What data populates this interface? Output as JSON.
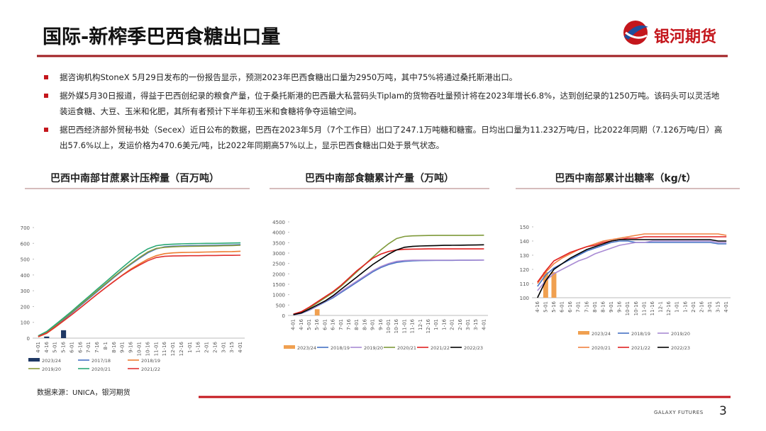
{
  "header": {
    "title": "国际-新榨季巴西食糖出口量",
    "logo_text": "银河期货"
  },
  "bullets": [
    "据咨询机构StoneX 5月29日发布的一份报告显示，预测2023年巴西食糖出口量为2950万吨，其中75%将通过桑托斯港出口。",
    "据外媒5月30日报道，得益于巴西创纪录的粮食产量，位于桑托斯港的巴西最大私营码头Tiplam的货物吞吐量预计将在2023年增长6.8%，达到创纪录的1250万吨。该码头可以灵活地装运食糖、大豆、玉米和化肥，其所有者预计下半年初玉米和食糖将争夺运输空间。",
    "据巴西经济部外贸秘书处（Secex）近日公布的数据，巴西在2023年5月（7个工作日）出口了247.1万吨糖和糖蜜。日均出口量为11.232万吨/日，比2022年同期（7.126万吨/日）高出57.6%以上，发运价格为470.6美元/吨，比2022年同期高57%以上，显示巴西食糖出口处于景气状态。"
  ],
  "footer": {
    "source": "数据来源：UNICA，银河期货",
    "brand": "GALAXY FUTURES",
    "page": "3"
  },
  "chart_data": [
    {
      "type": "line",
      "title": "巴西中南部甘蔗累计压榨量（百万吨）",
      "ylim": [
        0,
        700
      ],
      "yticks": [
        0,
        100,
        200,
        300,
        400,
        500,
        600,
        700
      ],
      "categories": [
        "4-01",
        "4-16",
        "5-01",
        "5-16",
        "6-01",
        "6-16",
        "7-01",
        "7-16",
        "8-1",
        "8-16",
        "9-01",
        "9-16",
        "10-01",
        "10-16",
        "11-01",
        "11-16",
        "12-01",
        "12-16",
        "1-01",
        "1-16",
        "2-01",
        "2-16",
        "3-01",
        "3-15",
        "4-01"
      ],
      "series": [
        {
          "name": "2023/24",
          "type": "bar",
          "color": "#1f3864",
          "values": [
            null,
            10,
            null,
            50,
            null,
            null,
            null,
            null,
            null,
            null,
            null,
            null,
            null,
            null,
            null,
            null,
            null,
            null,
            null,
            null,
            null,
            null,
            null,
            null,
            null
          ]
        },
        {
          "name": "2017/18",
          "color": "#4472c4",
          "values": [
            10,
            35,
            75,
            118,
            160,
            205,
            250,
            295,
            340,
            385,
            428,
            468,
            505,
            540,
            565,
            578,
            582,
            584,
            585,
            586,
            587,
            588,
            589,
            590,
            592
          ]
        },
        {
          "name": "2018/19",
          "color": "#ed7d31",
          "values": [
            8,
            30,
            68,
            108,
            150,
            192,
            235,
            278,
            320,
            360,
            400,
            438,
            470,
            500,
            522,
            535,
            540,
            542,
            543,
            544,
            545,
            546,
            547,
            548,
            550
          ]
        },
        {
          "name": "2019/20",
          "color": "#8a9a3b",
          "values": [
            12,
            38,
            80,
            122,
            165,
            210,
            255,
            300,
            345,
            390,
            432,
            472,
            510,
            545,
            568,
            575,
            578,
            580,
            581,
            582,
            583,
            584,
            585,
            586,
            588
          ]
        },
        {
          "name": "2020/21",
          "color": "#2aa876",
          "values": [
            15,
            42,
            85,
            128,
            172,
            218,
            264,
            310,
            356,
            402,
            448,
            492,
            532,
            565,
            585,
            592,
            595,
            597,
            598,
            599,
            600,
            600,
            601,
            602,
            603
          ]
        },
        {
          "name": "2021/22",
          "color": "#e03030",
          "values": [
            10,
            32,
            70,
            110,
            150,
            192,
            235,
            278,
            320,
            360,
            398,
            432,
            462,
            490,
            510,
            518,
            520,
            521,
            522,
            522,
            523,
            523,
            524,
            524,
            525
          ]
        }
      ]
    },
    {
      "type": "line",
      "title": "巴西中南部食糖累计产量（万吨）",
      "ylim": [
        0,
        4500
      ],
      "yticks": [
        0,
        500,
        1000,
        1500,
        2000,
        2500,
        3000,
        3500,
        4000,
        4500
      ],
      "categories": [
        "4-01",
        "4-16",
        "5-01",
        "5-16",
        "6-01",
        "6-16",
        "7-01",
        "7-16",
        "8-01",
        "8-16",
        "9-01",
        "9-16",
        "10-01",
        "10-16",
        "11-01",
        "11-16",
        "12-1",
        "12-16",
        "1-01",
        "1-16",
        "2-01",
        "2-16",
        "3-01",
        "3-15",
        "4-01"
      ],
      "series": [
        {
          "name": "2023/24",
          "type": "bar",
          "color": "#f0a050",
          "values": [
            null,
            null,
            null,
            300,
            null,
            null,
            null,
            null,
            null,
            null,
            null,
            null,
            null,
            null,
            null,
            null,
            null,
            null,
            null,
            null,
            null,
            null,
            null,
            null,
            null
          ]
        },
        {
          "name": "2018/19",
          "color": "#4472c4",
          "values": [
            30,
            100,
            250,
            450,
            650,
            850,
            1100,
            1350,
            1600,
            1850,
            2100,
            2300,
            2450,
            2550,
            2600,
            2630,
            2640,
            2645,
            2650,
            2650,
            2650,
            2655,
            2655,
            2660,
            2665
          ]
        },
        {
          "name": "2019/20",
          "color": "#a98bd4",
          "values": [
            30,
            110,
            270,
            470,
            680,
            900,
            1150,
            1400,
            1650,
            1900,
            2150,
            2350,
            2500,
            2600,
            2640,
            2655,
            2660,
            2660,
            2660,
            2660,
            2660,
            2660,
            2660,
            2662,
            2665
          ]
        },
        {
          "name": "2020/21",
          "color": "#7f9a3a",
          "values": [
            50,
            150,
            350,
            600,
            850,
            1100,
            1400,
            1750,
            2100,
            2450,
            2800,
            3150,
            3450,
            3700,
            3800,
            3830,
            3840,
            3845,
            3850,
            3850,
            3850,
            3850,
            3850,
            3855,
            3860
          ]
        },
        {
          "name": "2021/22",
          "color": "#e02020",
          "values": [
            60,
            180,
            400,
            650,
            900,
            1150,
            1450,
            1800,
            2150,
            2450,
            2750,
            2950,
            3080,
            3150,
            3180,
            3190,
            3195,
            3200,
            3200,
            3200,
            3200,
            3200,
            3200,
            3200,
            3200
          ]
        },
        {
          "name": "2022/23",
          "color": "#000000",
          "values": [
            40,
            120,
            300,
            500,
            700,
            950,
            1250,
            1550,
            1850,
            2150,
            2450,
            2700,
            2950,
            3150,
            3280,
            3320,
            3340,
            3350,
            3360,
            3370,
            3375,
            3380,
            3385,
            3390,
            3400
          ]
        }
      ]
    },
    {
      "type": "line",
      "title": "巴西中南部累计出糖率（kg/t）",
      "ylim": [
        100,
        150
      ],
      "yticks": [
        100,
        110,
        120,
        130,
        140,
        150
      ],
      "categories": [
        "4-16",
        "5-01",
        "5-16",
        "6-01",
        "6-16",
        "7-01",
        "7-16",
        "8-01",
        "8-16",
        "9-01",
        "9-16",
        "10-01",
        "10-16",
        "11-01",
        "11-16",
        "12-1",
        "12-16",
        "1-01",
        "1-16",
        "2-01",
        "2-16",
        "3-01",
        "3-15",
        "4-01"
      ],
      "series": [
        {
          "name": "2023/24",
          "type": "bar",
          "color": "#f0a050",
          "values": [
            null,
            118,
            118,
            null,
            null,
            null,
            null,
            null,
            null,
            null,
            null,
            null,
            null,
            null,
            null,
            null,
            null,
            null,
            null,
            null,
            null,
            null,
            null,
            null
          ]
        },
        {
          "name": "2018/19",
          "color": "#4472c4",
          "values": [
            108,
            116,
            121,
            124,
            127,
            130,
            133,
            135,
            137,
            139,
            140,
            140,
            139,
            139,
            139,
            139,
            139,
            139,
            139,
            139,
            139,
            139,
            138,
            138
          ]
        },
        {
          "name": "2019/20",
          "color": "#a98bd4",
          "values": [
            105,
            112,
            117,
            120,
            123,
            126,
            128,
            131,
            133,
            135,
            137,
            138,
            139,
            139,
            140,
            140,
            140,
            140,
            140,
            140,
            140,
            140,
            139,
            139
          ]
        },
        {
          "name": "2020/21",
          "color": "#f08040",
          "values": [
            110,
            118,
            124,
            128,
            131,
            134,
            136,
            138,
            140,
            141,
            142,
            143,
            144,
            145,
            145,
            145,
            145,
            145,
            145,
            145,
            145,
            145,
            145,
            144
          ]
        },
        {
          "name": "2021/22",
          "color": "#e02020",
          "values": [
            111,
            119,
            126,
            129,
            132,
            134,
            136,
            137,
            139,
            140,
            141,
            142,
            142,
            143,
            143,
            143,
            143,
            143,
            143,
            143,
            143,
            143,
            143,
            143
          ]
        },
        {
          "name": "2022/23",
          "color": "#000000",
          "values": [
            100,
            112,
            120,
            124,
            128,
            131,
            134,
            136,
            138,
            140,
            141,
            141,
            141,
            141,
            141,
            141,
            141,
            141,
            141,
            141,
            141,
            141,
            140,
            140
          ]
        }
      ]
    }
  ]
}
